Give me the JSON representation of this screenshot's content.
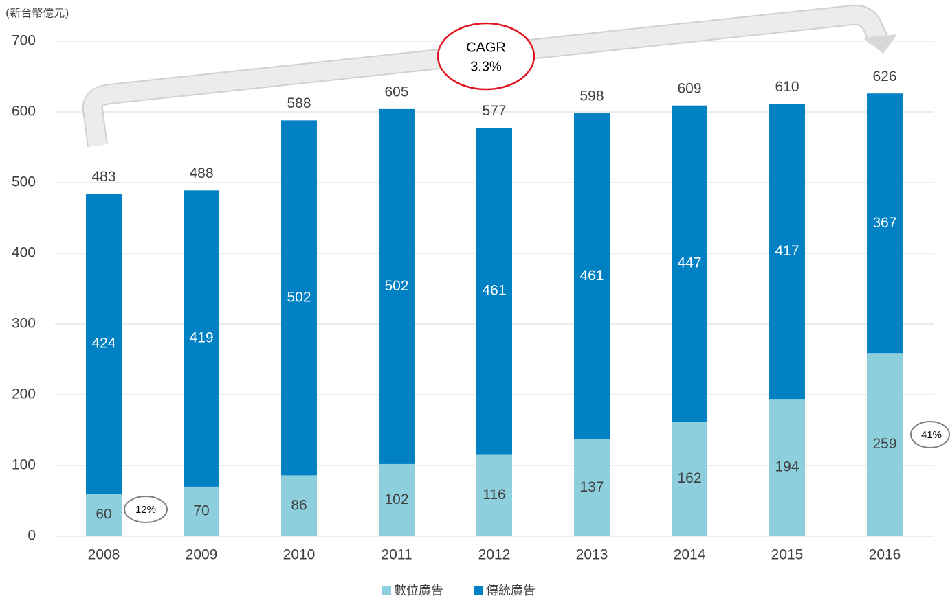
{
  "chart_data": {
    "type": "stacked_bar",
    "unit_label": "(新台幣億元)",
    "categories": [
      "2008",
      "2009",
      "2010",
      "2011",
      "2012",
      "2013",
      "2014",
      "2015",
      "2016"
    ],
    "series": [
      {
        "name": "數位廣告",
        "color": "#8ecfdd",
        "values": [
          60,
          70,
          86,
          102,
          116,
          137,
          162,
          194,
          259
        ]
      },
      {
        "name": "傳統廣告",
        "color": "#0081c3",
        "values": [
          424,
          419,
          502,
          502,
          461,
          461,
          447,
          417,
          367
        ]
      }
    ],
    "totals": [
      483,
      488,
      588,
      605,
      577,
      598,
      609,
      610,
      626
    ],
    "annotations": {
      "cagr_title": "CAGR",
      "cagr_value": "3.3%",
      "start_share": "12%",
      "end_share": "41%"
    },
    "ylim": [
      0,
      700
    ],
    "yticks": [
      0,
      100,
      200,
      300,
      400,
      500,
      600,
      700
    ],
    "grid": true,
    "legend": "bottom"
  }
}
